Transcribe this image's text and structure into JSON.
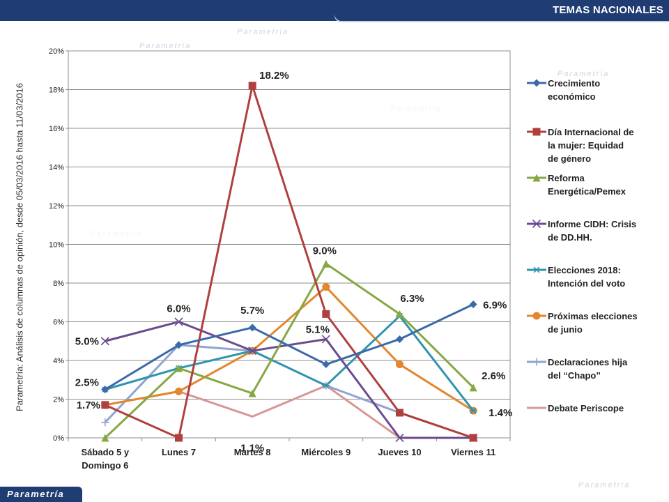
{
  "header": {
    "section_title": "TEMAS NACIONALES"
  },
  "side_label": "Parametría: Análisis de columnas de opinión, desde 05/03/2016 hasta 11/03/2016",
  "brand": "Parametría",
  "colors": {
    "header_bg": "#1f3c73",
    "grid": "#8c8c8c"
  },
  "chart_data": {
    "type": "line",
    "categories": [
      "Sábado 5 y Domingo 6",
      "Lunes 7",
      "Martes 8",
      "Miércoles 9",
      "Jueves 10",
      "Viernes 11"
    ],
    "category_lines": [
      [
        "Sábado 5 y",
        "Domingo 6"
      ],
      [
        "Lunes 7"
      ],
      [
        "Martes 8"
      ],
      [
        "Miércoles 9"
      ],
      [
        "Jueves 10"
      ],
      [
        "Viernes 11"
      ]
    ],
    "ylim": [
      0,
      20
    ],
    "yticks": [
      0,
      2,
      4,
      6,
      8,
      10,
      12,
      14,
      16,
      18,
      20
    ],
    "ytick_labels": [
      "0%",
      "2%",
      "4%",
      "6%",
      "8%",
      "10%",
      "12%",
      "14%",
      "16%",
      "18%",
      "20%"
    ],
    "grid": "horizontal",
    "legend_position": "right",
    "series": [
      {
        "name": "Crecimiento económico",
        "legend_lines": [
          "Crecimiento",
          "económico"
        ],
        "color": "#3b6aa8",
        "marker": "diamond",
        "values": [
          2.5,
          4.8,
          5.7,
          3.8,
          5.1,
          6.9
        ]
      },
      {
        "name": "Día Internacional de la mujer: Equidad de género",
        "legend_lines": [
          "Día Internacional de",
          "la mujer: Equidad",
          "de género"
        ],
        "color": "#b0403d",
        "marker": "square",
        "values": [
          1.7,
          0.0,
          18.2,
          6.4,
          1.3,
          0.0
        ]
      },
      {
        "name": "Reforma Energética/Pemex",
        "legend_lines": [
          "Reforma",
          "Energética/Pemex"
        ],
        "color": "#86a843",
        "marker": "triangle",
        "values": [
          0.0,
          3.6,
          2.3,
          9.0,
          6.4,
          2.6
        ]
      },
      {
        "name": "Informe CIDH: Crisis de DD.HH.",
        "legend_lines": [
          "Informe CIDH: Crisis",
          "de DD.HH."
        ],
        "color": "#6b4b8e",
        "marker": "x",
        "values": [
          5.0,
          6.0,
          4.5,
          5.1,
          0.0,
          0.0
        ]
      },
      {
        "name": "Elecciones 2018: Intención del voto",
        "legend_lines": [
          "Elecciones 2018:",
          "Intención del voto"
        ],
        "color": "#2f94ad",
        "marker": "star",
        "values": [
          2.5,
          3.6,
          4.5,
          2.7,
          6.3,
          1.4
        ]
      },
      {
        "name": "Próximas elecciones de junio",
        "legend_lines": [
          "Próximas elecciones",
          "de junio"
        ],
        "color": "#e3872d",
        "marker": "circle",
        "values": [
          1.7,
          2.4,
          4.5,
          7.8,
          3.8,
          1.4
        ]
      },
      {
        "name": "Declaraciones hija del “Chapo”",
        "legend_lines": [
          "Declaraciones hija",
          "del “Chapo”"
        ],
        "color": "#8fa4d2",
        "marker": "plus",
        "values": [
          0.8,
          4.8,
          4.5,
          2.7,
          1.3,
          0.0
        ]
      },
      {
        "name": "Debate Periscope",
        "legend_lines": [
          "Debate Periscope"
        ],
        "color": "#d79894",
        "marker": "none",
        "values": [
          1.7,
          2.4,
          1.1,
          2.7,
          0.0,
          0.0
        ]
      }
    ],
    "data_labels": [
      {
        "text": "18.2%",
        "series": 1,
        "index": 2,
        "dx": 10,
        "dy": -10,
        "anchor": "start"
      },
      {
        "text": "9.0%",
        "series": 2,
        "index": 3,
        "dx": -2,
        "dy": -14,
        "anchor": "middle"
      },
      {
        "text": "6.3%",
        "series": 4,
        "index": 4,
        "dx": 18,
        "dy": -20,
        "anchor": "middle"
      },
      {
        "text": "6.9%",
        "series": 0,
        "index": 5,
        "dx": 14,
        "dy": 6,
        "anchor": "start"
      },
      {
        "text": "6.0%",
        "series": 3,
        "index": 1,
        "dx": 0,
        "dy": -14,
        "anchor": "middle"
      },
      {
        "text": "5.7%",
        "series": 0,
        "index": 2,
        "dx": 0,
        "dy": -20,
        "anchor": "middle"
      },
      {
        "text": "5.1%",
        "series": 3,
        "index": 3,
        "dx": -12,
        "dy": -9,
        "anchor": "middle"
      },
      {
        "text": "5.0%",
        "series": 3,
        "index": 0,
        "dx": -26,
        "dy": 5,
        "anchor": "middle"
      },
      {
        "text": "2.5%",
        "series": 0,
        "index": 0,
        "dx": -26,
        "dy": -5,
        "anchor": "middle"
      },
      {
        "text": "1.7%",
        "series": 1,
        "index": 0,
        "dx": -24,
        "dy": 5,
        "anchor": "middle"
      },
      {
        "text": "1.1%",
        "series": 7,
        "index": 2,
        "dx": 0,
        "dy": 50,
        "anchor": "middle"
      },
      {
        "text": "2.6%",
        "series": 2,
        "index": 5,
        "dx": 12,
        "dy": -12,
        "anchor": "start"
      },
      {
        "text": "1.4%",
        "series": 4,
        "index": 5,
        "dx": 22,
        "dy": 8,
        "anchor": "start"
      }
    ]
  }
}
